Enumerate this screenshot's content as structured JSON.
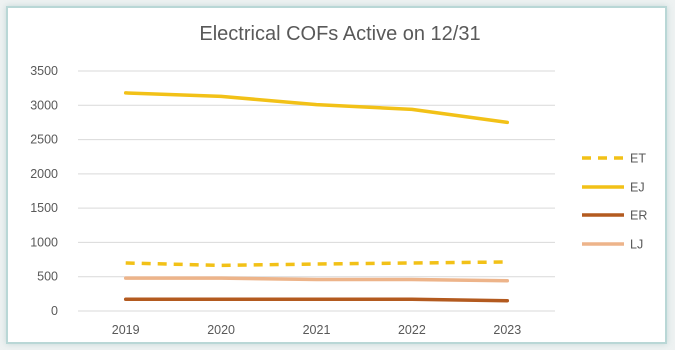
{
  "chart_data": {
    "type": "line",
    "title": "Electrical COFs Active on 12/31",
    "xlabel": "",
    "ylabel": "",
    "x": [
      "2019",
      "2020",
      "2021",
      "2022",
      "2023"
    ],
    "yticks": [
      "0",
      "500",
      "1000",
      "1500",
      "2000",
      "2500",
      "3000",
      "3500"
    ],
    "ylim": [
      0,
      3500
    ],
    "grid": true,
    "legend_position": "right",
    "series": [
      {
        "name": "ET",
        "values": [
          700,
          665,
          685,
          700,
          715
        ],
        "color": "#F2C117",
        "style": "dashed"
      },
      {
        "name": "EJ",
        "values": [
          3180,
          3130,
          3010,
          2940,
          2750
        ],
        "color": "#F2C117",
        "style": "solid"
      },
      {
        "name": "ER",
        "values": [
          170,
          170,
          170,
          170,
          150
        ],
        "color": "#B35A1F",
        "style": "solid"
      },
      {
        "name": "LJ",
        "values": [
          480,
          480,
          460,
          460,
          440
        ],
        "color": "#EDB48A",
        "style": "solid"
      }
    ]
  }
}
